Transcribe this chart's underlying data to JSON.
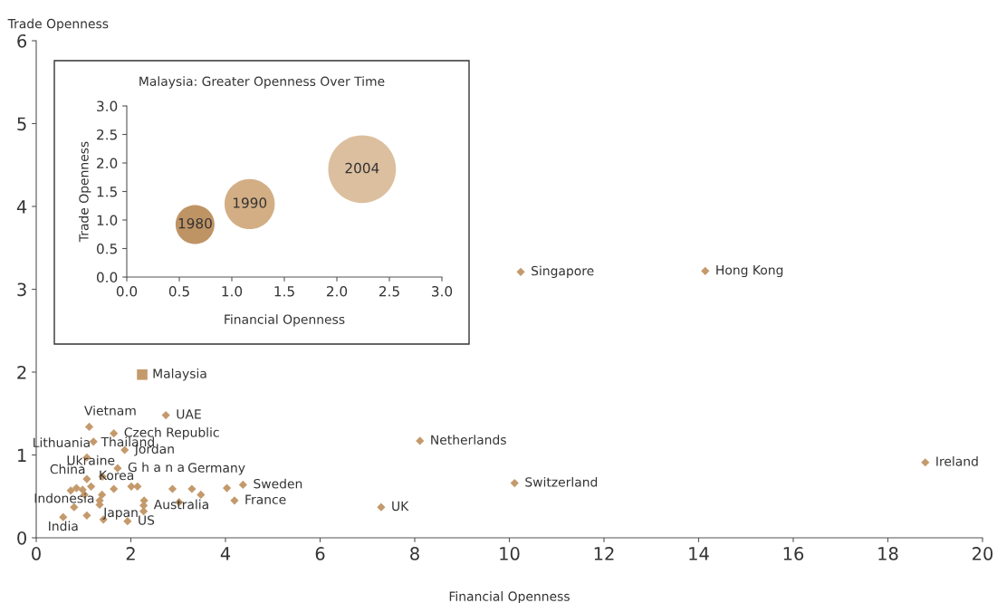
{
  "chart_data": [
    {
      "type": "scatter",
      "xlabel": "Financial Openness",
      "ylabel": "Trade Openness",
      "xlim": [
        0,
        20
      ],
      "ylim": [
        0,
        6
      ],
      "xticks": [
        0,
        2,
        4,
        6,
        8,
        10,
        12,
        14,
        16,
        18,
        20
      ],
      "yticks": [
        0,
        1,
        2,
        3,
        4,
        5,
        6
      ],
      "grid": false,
      "legend": false,
      "series": [
        {
          "color": "#c49a6c",
          "marker": "diamond",
          "x": [
            1.12,
            2.74,
            1.64,
            1.21,
            1.87,
            1.07,
            1.72,
            1.4,
            1.07,
            1.16,
            1.64,
            2.01,
            2.14,
            2.88,
            3.29,
            3.48,
            4.03,
            4.37,
            4.19,
            3.02,
            2.28,
            2.27,
            2.27,
            1.93,
            1.42,
            0.57,
            1.07,
            0.8,
            0.73,
            0.85,
            0.98,
            1.02,
            1.39,
            1.34,
            1.34,
            10.24,
            14.14,
            8.11,
            10.11,
            7.29,
            18.79
          ],
          "values": [
            1.34,
            1.48,
            1.26,
            1.16,
            1.06,
            0.97,
            0.84,
            0.74,
            0.71,
            0.62,
            0.59,
            0.62,
            0.62,
            0.59,
            0.59,
            0.52,
            0.6,
            0.64,
            0.45,
            0.43,
            0.45,
            0.39,
            0.32,
            0.2,
            0.22,
            0.25,
            0.27,
            0.37,
            0.57,
            0.6,
            0.58,
            0.52,
            0.52,
            0.45,
            0.4,
            3.21,
            3.22,
            1.17,
            0.66,
            0.37,
            0.91
          ]
        },
        {
          "color": "#c49a6c",
          "marker": "square",
          "x": [
            2.24
          ],
          "values": [
            1.97
          ]
        }
      ],
      "annotations": [
        {
          "text": "Malaysia",
          "x": 2.24,
          "y": 1.97
        },
        {
          "text": "Vietnam",
          "x": 1.12,
          "y": 1.34
        },
        {
          "text": "UAE",
          "x": 2.74,
          "y": 1.48
        },
        {
          "text": "Czech Republic",
          "x": 1.64,
          "y": 1.26
        },
        {
          "text": "Thailand",
          "x": 1.21,
          "y": 1.16
        },
        {
          "text": "Lithuania",
          "x": 1.07,
          "y": 0.97
        },
        {
          "text": "Jordan",
          "x": 1.87,
          "y": 1.06
        },
        {
          "text": "Ukraine",
          "x": 1.4,
          "y": 0.74
        },
        {
          "text": "G h a n a",
          "x": 1.72,
          "y": 0.84
        },
        {
          "text": "China",
          "x": 1.07,
          "y": 0.71
        },
        {
          "text": "Korea",
          "x": 1.16,
          "y": 0.62
        },
        {
          "text": "Germany",
          "x": 2.88,
          "y": 0.59
        },
        {
          "text": "Sweden",
          "x": 4.37,
          "y": 0.64
        },
        {
          "text": "Indonesia",
          "x": 1.34,
          "y": 0.45
        },
        {
          "text": "France",
          "x": 4.19,
          "y": 0.45
        },
        {
          "text": "Australia",
          "x": 2.27,
          "y": 0.39
        },
        {
          "text": "Japan",
          "x": 1.34,
          "y": 0.4
        },
        {
          "text": "India",
          "x": 0.57,
          "y": 0.25
        },
        {
          "text": "US",
          "x": 1.93,
          "y": 0.2
        },
        {
          "text": "Singapore",
          "x": 10.24,
          "y": 3.21
        },
        {
          "text": "Hong Kong",
          "x": 14.14,
          "y": 3.22
        },
        {
          "text": "Netherlands",
          "x": 8.11,
          "y": 1.17
        },
        {
          "text": "Switzerland",
          "x": 10.11,
          "y": 0.66
        },
        {
          "text": "UK",
          "x": 7.29,
          "y": 0.37
        },
        {
          "text": "Ireland",
          "x": 18.79,
          "y": 0.91
        }
      ]
    },
    {
      "type": "bubble",
      "title": "Malaysia: Greater Openness Over Time",
      "xlabel": "Financial Openness",
      "ylabel": "Trade Openness",
      "xlim": [
        0,
        3
      ],
      "ylim": [
        0,
        3
      ],
      "xticks": [
        {
          "value": 0,
          "label": "0.0"
        },
        {
          "value": 0.5,
          "label": "0.5"
        },
        {
          "value": 1,
          "label": "1.0"
        },
        {
          "value": 1.5,
          "label": "1.5"
        },
        {
          "value": 2,
          "label": "2.0"
        },
        {
          "value": 2.5,
          "label": "2.5"
        },
        {
          "value": 3,
          "label": "3.0"
        }
      ],
      "yticks": [
        {
          "value": 0,
          "label": "0.0"
        },
        {
          "value": 0.5,
          "label": "0.5"
        },
        {
          "value": 1,
          "label": "1.0"
        },
        {
          "value": 1.5,
          "label": "1.5"
        },
        {
          "value": 2,
          "label": "2.0"
        },
        {
          "value": 2.5,
          "label": "2.5"
        },
        {
          "value": 3,
          "label": "3.0"
        }
      ],
      "grid": false,
      "legend": false,
      "series": [
        {
          "name": "1980",
          "color": "#bf9465",
          "x": [
            0.65
          ],
          "values": [
            0.92
          ],
          "sizes": [
            0.33
          ]
        },
        {
          "name": "1990",
          "color": "#d3ae84",
          "x": [
            1.17
          ],
          "values": [
            1.28
          ],
          "sizes": [
            0.55
          ]
        },
        {
          "name": "2004",
          "color": "#dcbf9f",
          "x": [
            2.24
          ],
          "values": [
            1.89
          ],
          "sizes": [
            1
          ]
        }
      ]
    }
  ]
}
